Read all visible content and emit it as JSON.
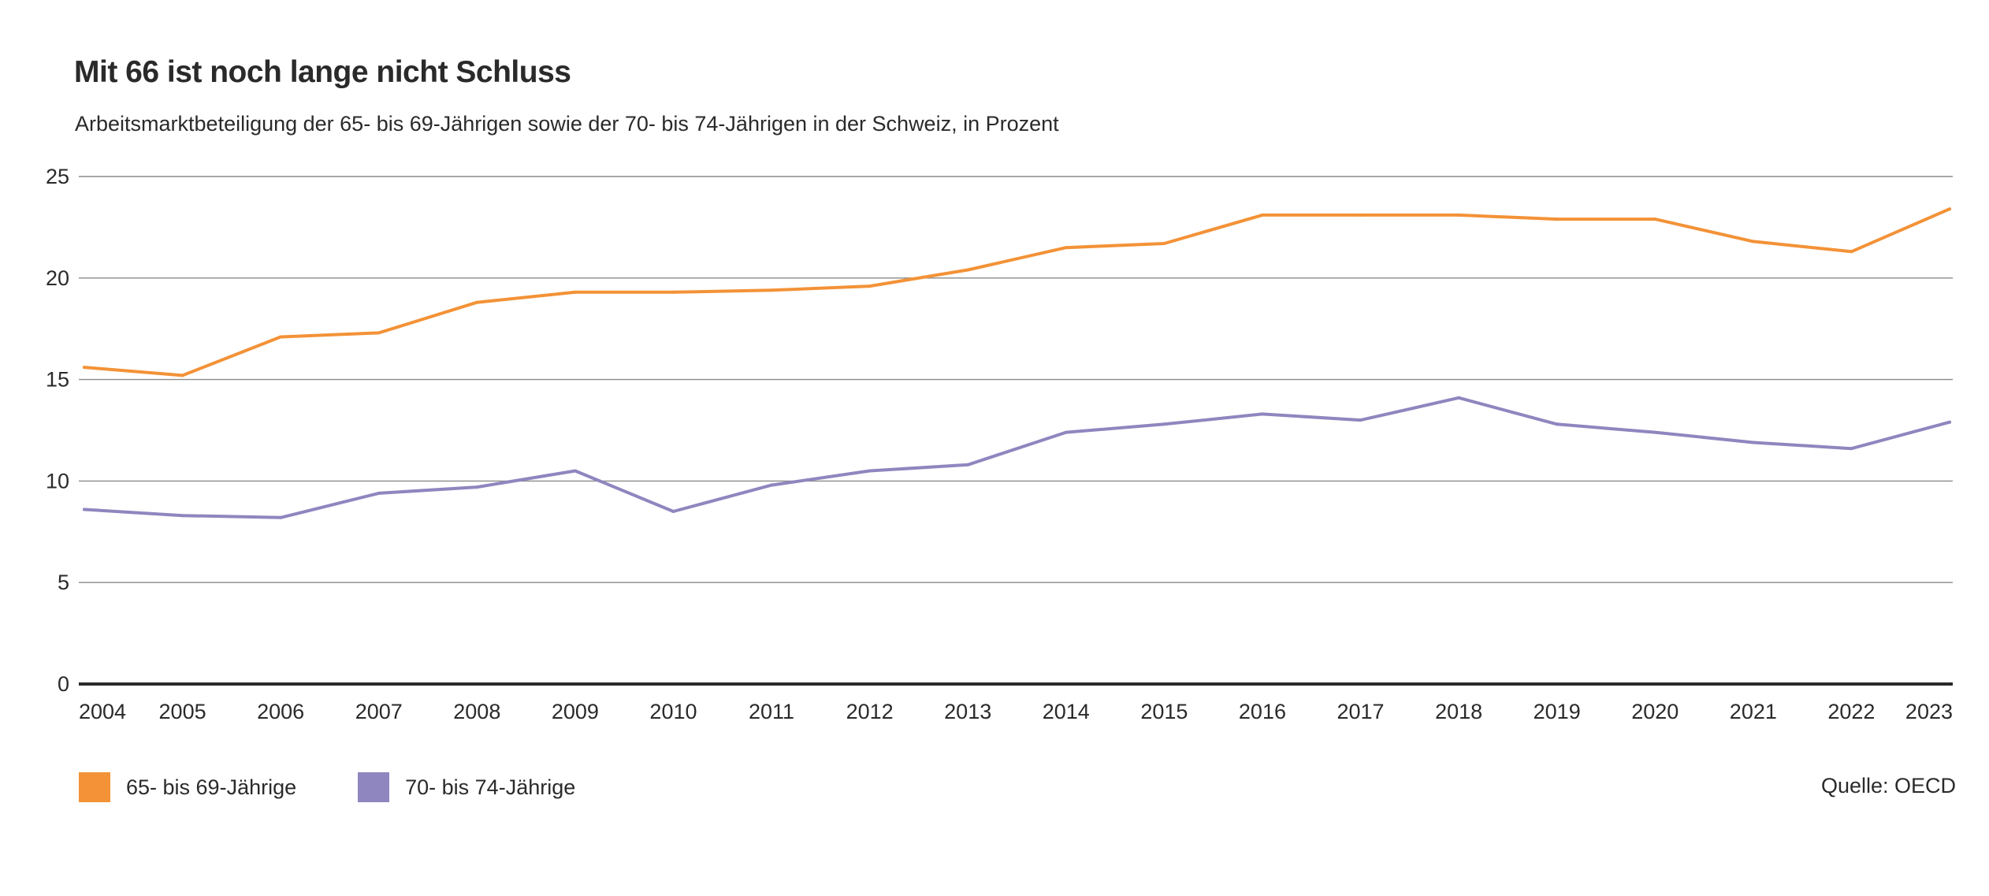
{
  "chart_data": {
    "type": "line",
    "title": "Mit 66 ist noch lange nicht Schluss",
    "subtitle": "Arbeitsmarktbeteiligung der 65- bis 69-Jährigen sowie der 70- bis 74-Jährigen in der Schweiz, in Prozent",
    "x": [
      "2004",
      "2005",
      "2006",
      "2007",
      "2008",
      "2009",
      "2010",
      "2011",
      "2012",
      "2013",
      "2014",
      "2015",
      "2016",
      "2017",
      "2018",
      "2019",
      "2020",
      "2021",
      "2022",
      "2023"
    ],
    "ylim": [
      0,
      25
    ],
    "yticks": [
      0,
      5,
      10,
      15,
      20,
      25
    ],
    "grid": true,
    "legend_position": "bottom-left",
    "series": [
      {
        "name": "65- bis 69-Jährige",
        "color": "#f39237",
        "values": [
          15.6,
          15.2,
          17.1,
          17.3,
          18.8,
          19.3,
          19.3,
          19.4,
          19.6,
          20.4,
          21.5,
          21.7,
          23.1,
          23.1,
          23.1,
          22.9,
          22.9,
          21.8,
          21.3,
          23.4
        ]
      },
      {
        "name": "70- bis 74-Jährige",
        "color": "#8f86bf",
        "values": [
          8.6,
          8.3,
          8.2,
          9.4,
          9.7,
          10.5,
          8.5,
          9.8,
          10.5,
          10.8,
          12.4,
          12.8,
          13.3,
          13.0,
          14.1,
          12.8,
          12.4,
          11.9,
          11.6,
          12.9
        ]
      }
    ],
    "source": "Quelle: OECD"
  }
}
